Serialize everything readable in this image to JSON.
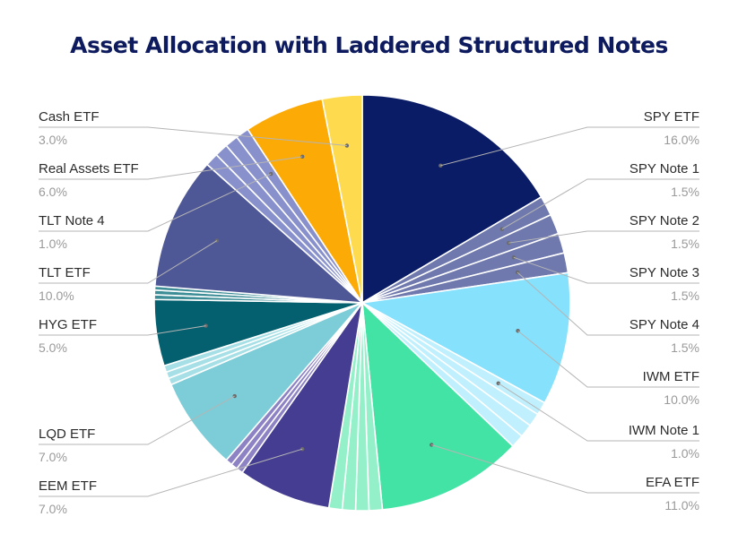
{
  "chart_data": {
    "type": "pie",
    "title": "Asset Allocation with Laddered Structured Notes",
    "slices": [
      {
        "name": "SPY ETF",
        "value": 16.0,
        "label": "16.0%",
        "color": "#0b1c66",
        "labeled": true
      },
      {
        "name": "SPY Note 1",
        "value": 1.5,
        "label": "1.5%",
        "color": "#6f79ad",
        "labeled": true
      },
      {
        "name": "SPY Note 2",
        "value": 1.5,
        "label": "1.5%",
        "color": "#6f79ad",
        "labeled": true
      },
      {
        "name": "SPY Note 3",
        "value": 1.5,
        "label": "1.5%",
        "color": "#6f79ad",
        "labeled": true
      },
      {
        "name": "SPY Note 4",
        "value": 1.5,
        "label": "1.5%",
        "color": "#6f79ad",
        "labeled": true
      },
      {
        "name": "IWM ETF",
        "value": 10.0,
        "label": "10.0%",
        "color": "#86e1fc",
        "labeled": true
      },
      {
        "name": "IWM Note 1",
        "value": 1.0,
        "label": "1.0%",
        "color": "#c0f0fd",
        "labeled": true
      },
      {
        "name": "",
        "value": 1.0,
        "label": "",
        "color": "#c0f0fd",
        "labeled": false
      },
      {
        "name": "",
        "value": 1.0,
        "label": "",
        "color": "#c0f0fd",
        "labeled": false
      },
      {
        "name": "",
        "value": 1.0,
        "label": "",
        "color": "#c0f0fd",
        "labeled": false
      },
      {
        "name": "EFA ETF",
        "value": 11.0,
        "label": "11.0%",
        "color": "#42e3a4",
        "labeled": true
      },
      {
        "name": "",
        "value": 1.0,
        "label": "",
        "color": "#93f0c9",
        "labeled": false
      },
      {
        "name": "",
        "value": 1.0,
        "label": "",
        "color": "#93f0c9",
        "labeled": false
      },
      {
        "name": "",
        "value": 1.0,
        "label": "",
        "color": "#93f0c9",
        "labeled": false
      },
      {
        "name": "",
        "value": 1.0,
        "label": "",
        "color": "#93f0c9",
        "labeled": false
      },
      {
        "name": "EEM ETF",
        "value": 7.0,
        "label": "7.0%",
        "color": "#453d91",
        "labeled": true
      },
      {
        "name": "",
        "value": 0.5,
        "label": "",
        "color": "#8c82c4",
        "labeled": false
      },
      {
        "name": "",
        "value": 0.5,
        "label": "",
        "color": "#8c82c4",
        "labeled": false
      },
      {
        "name": "",
        "value": 0.5,
        "label": "",
        "color": "#8c82c4",
        "labeled": false
      },
      {
        "name": "LQD ETF",
        "value": 7.0,
        "label": "7.0%",
        "color": "#7ccdd7",
        "labeled": true
      },
      {
        "name": "",
        "value": 0.5,
        "label": "",
        "color": "#a6e0e6",
        "labeled": false
      },
      {
        "name": "",
        "value": 0.5,
        "label": "",
        "color": "#a6e0e6",
        "labeled": false
      },
      {
        "name": "",
        "value": 0.5,
        "label": "",
        "color": "#a6e0e6",
        "labeled": false
      },
      {
        "name": "HYG ETF",
        "value": 5.0,
        "label": "5.0%",
        "color": "#045f6e",
        "labeled": true
      },
      {
        "name": "",
        "value": 0.35,
        "label": "",
        "color": "#3d8d97",
        "labeled": false
      },
      {
        "name": "",
        "value": 0.35,
        "label": "",
        "color": "#3d8d97",
        "labeled": false
      },
      {
        "name": "",
        "value": 0.3,
        "label": "",
        "color": "#3d8d97",
        "labeled": false
      },
      {
        "name": "TLT ETF",
        "value": 10.0,
        "label": "10.0%",
        "color": "#4f5896",
        "labeled": true
      },
      {
        "name": "",
        "value": 1.0,
        "label": "",
        "color": "#8891cc",
        "labeled": false
      },
      {
        "name": "",
        "value": 1.0,
        "label": "",
        "color": "#8891cc",
        "labeled": false
      },
      {
        "name": "",
        "value": 1.0,
        "label": "",
        "color": "#8891cc",
        "labeled": false
      },
      {
        "name": "TLT Note 4",
        "value": 1.0,
        "label": "1.0%",
        "color": "#8891cc",
        "labeled": true
      },
      {
        "name": "Real Assets ETF",
        "value": 6.0,
        "label": "6.0%",
        "color": "#fcaa05",
        "labeled": true
      },
      {
        "name": "Cash ETF",
        "value": 3.0,
        "label": "3.0%",
        "color": "#fedb4e",
        "labeled": true
      }
    ],
    "legend": "none"
  }
}
